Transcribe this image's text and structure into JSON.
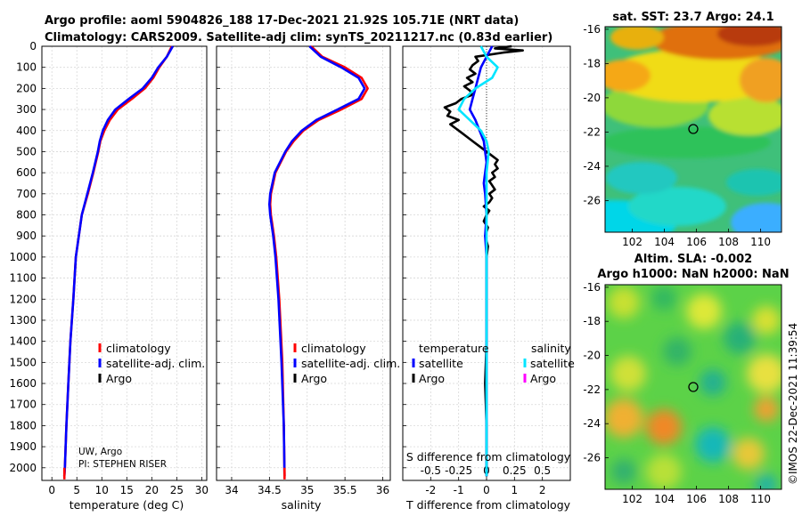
{
  "header": {
    "title_line1": "Argo profile: aoml 5904826_188 17-Dec-2021 21.92S 105.71E (NRT data)",
    "title_line2": "Climatology: CARS2009. Satellite-adj clim: synTS_20211217.nc (0.83d earlier)"
  },
  "credits": {
    "institution": "UW, Argo",
    "pi": "PI: STEPHEN RISER",
    "watermark": "©IMOS 22-Dec-2021 11:39:54"
  },
  "colors": {
    "climatology": "#ff0000",
    "satellite": "#0000ff",
    "argo": "#000000",
    "sat_salinity": "#00e5ff",
    "argo_salinity": "#ff00ff"
  },
  "chart_data": [
    {
      "id": "temperature",
      "type": "line",
      "xlabel": "temperature (deg C)",
      "xlim": [
        -2,
        31
      ],
      "xticks": [
        0,
        5,
        10,
        15,
        20,
        25,
        30
      ],
      "ylim": [
        2060,
        0
      ],
      "yticks": [
        0,
        100,
        200,
        300,
        400,
        500,
        600,
        700,
        800,
        900,
        1000,
        1100,
        1200,
        1300,
        1400,
        1500,
        1600,
        1700,
        1800,
        1900,
        2000
      ],
      "legend": [
        "climatology",
        "satellite-adj. clim.",
        "Argo"
      ],
      "series": [
        {
          "name": "climatology",
          "depth": [
            0,
            50,
            100,
            150,
            200,
            250,
            300,
            350,
            400,
            450,
            500,
            600,
            700,
            800,
            1000,
            1200,
            1400,
            1600,
            1800,
            2000,
            2040
          ],
          "values": [
            24.0,
            23.0,
            21.5,
            20.3,
            18.6,
            16.0,
            13.2,
            11.6,
            10.5,
            9.7,
            9.3,
            8.3,
            7.2,
            6.0,
            4.8,
            4.3,
            3.7,
            3.3,
            2.9,
            2.6,
            2.5
          ]
        },
        {
          "name": "satellite-adj. clim.",
          "depth": [
            0,
            50,
            100,
            150,
            200,
            250,
            300,
            350,
            400,
            450,
            500,
            600,
            700,
            800,
            1000,
            1200,
            1400,
            1600,
            1800,
            2000,
            2040
          ],
          "values": [
            24.2,
            23.0,
            21.3,
            20.0,
            18.2,
            15.4,
            12.7,
            11.2,
            10.2,
            9.6,
            9.2,
            8.2,
            7.1,
            6.0,
            4.8,
            4.3,
            3.7,
            3.3,
            2.9,
            2.6,
            2.5
          ]
        },
        {
          "name": "Argo",
          "depth": [],
          "values": []
        }
      ]
    },
    {
      "id": "salinity",
      "type": "line",
      "xlabel": "salinity",
      "xlim": [
        33.8,
        36.1
      ],
      "xticks": [
        34,
        34.5,
        35,
        35.5,
        36
      ],
      "ylim": [
        2060,
        0
      ],
      "legend": [
        "climatology",
        "satellite-adj. clim.",
        "Argo"
      ],
      "series": [
        {
          "name": "climatology",
          "depth": [
            0,
            50,
            100,
            150,
            200,
            250,
            300,
            350,
            400,
            450,
            500,
            600,
            700,
            750,
            800,
            900,
            1000,
            1200,
            1500,
            1800,
            2040
          ],
          "values": [
            35.05,
            35.2,
            35.5,
            35.72,
            35.8,
            35.72,
            35.45,
            35.15,
            34.95,
            34.82,
            34.72,
            34.58,
            34.52,
            34.51,
            34.52,
            34.56,
            34.59,
            34.63,
            34.67,
            34.69,
            34.7
          ]
        },
        {
          "name": "satellite-adj. clim.",
          "depth": [
            0,
            50,
            100,
            150,
            200,
            250,
            300,
            350,
            400,
            450,
            500,
            600,
            700,
            750,
            800,
            900,
            1000,
            1200,
            1500,
            1800,
            2040
          ],
          "values": [
            35.03,
            35.18,
            35.45,
            35.68,
            35.76,
            35.68,
            35.4,
            35.12,
            34.93,
            34.8,
            34.71,
            34.57,
            34.51,
            34.5,
            34.51,
            34.55,
            34.58,
            34.62,
            34.66,
            34.69,
            34.7
          ]
        },
        {
          "name": "Argo",
          "depth": [],
          "values": []
        }
      ]
    },
    {
      "id": "difference",
      "type": "line",
      "xlabel": "T difference from climatology",
      "xlabel_top": "S difference from climatology",
      "xlim": [
        -3,
        3
      ],
      "xticks": [
        -2,
        -1,
        0,
        1,
        2
      ],
      "xticks_s": [
        "-0.5",
        "-0.25",
        "0",
        "0.25",
        "0.5"
      ],
      "ylim": [
        2060,
        0
      ],
      "legend_temperature_title": "temperature",
      "legend_salinity_title": "salinity",
      "legend": [
        "satellite",
        "Argo"
      ],
      "series": [
        {
          "name": "T satellite",
          "depth": [
            0,
            50,
            100,
            150,
            200,
            250,
            300,
            350,
            400,
            450,
            500,
            550,
            600,
            650,
            700,
            800,
            900,
            1000,
            1200,
            1500,
            2040
          ],
          "values": [
            0.2,
            0.0,
            -0.2,
            -0.3,
            -0.4,
            -0.5,
            -0.6,
            -0.4,
            -0.25,
            -0.1,
            -0.05,
            0.0,
            -0.05,
            -0.1,
            -0.05,
            0.0,
            -0.05,
            0.0,
            0.0,
            0.0,
            0.0
          ]
        },
        {
          "name": "T Argo",
          "depth": [
            0,
            10,
            20,
            30,
            50,
            70,
            90,
            110,
            130,
            150,
            170,
            190,
            210,
            230,
            250,
            270,
            290,
            310,
            330,
            350,
            370,
            390,
            410,
            430,
            450,
            480,
            500,
            520,
            540,
            560,
            580,
            600,
            620,
            640,
            660,
            680,
            700,
            720,
            740,
            760,
            780,
            800,
            830,
            860,
            900,
            950,
            1000,
            1100,
            1200,
            1400,
            1600,
            1800,
            2040
          ],
          "values": [
            0.9,
            0.3,
            1.3,
            0.6,
            -0.4,
            -0.3,
            -0.5,
            -0.6,
            -0.4,
            -0.7,
            -0.5,
            -0.8,
            -0.6,
            -0.5,
            -0.9,
            -1.1,
            -1.5,
            -1.3,
            -1.4,
            -1.0,
            -1.3,
            -1.1,
            -0.9,
            -0.7,
            -0.5,
            -0.2,
            0.0,
            0.2,
            0.4,
            0.3,
            0.4,
            0.2,
            0.3,
            0.1,
            0.2,
            0.3,
            0.1,
            0.2,
            0.1,
            -0.1,
            0.1,
            0.0,
            -0.1,
            0.05,
            -0.05,
            0.05,
            0.0,
            0.0,
            0.0,
            0.0,
            -0.05,
            0.0,
            0.0
          ]
        },
        {
          "name": "S satellite",
          "depth": [
            0,
            50,
            100,
            150,
            200,
            250,
            300,
            350,
            400,
            450,
            500,
            600,
            700,
            800,
            1000,
            1200,
            1500,
            2040
          ],
          "values": [
            -0.05,
            0.0,
            0.1,
            0.05,
            -0.1,
            -0.2,
            -0.25,
            -0.15,
            -0.05,
            0.0,
            0.02,
            0.0,
            0.0,
            0.0,
            0.0,
            0.0,
            0.0,
            0.0
          ]
        }
      ]
    }
  ],
  "maps": [
    {
      "id": "sst",
      "title": "sat. SST: 23.7 Argo: 24.1",
      "xticks": [
        "102",
        "104",
        "106",
        "108",
        "110"
      ],
      "yticks": [
        "-16",
        "-18",
        "-20",
        "-22",
        "-24",
        "-26"
      ]
    },
    {
      "id": "sla",
      "title_line1": "Altim. SLA: -0.002",
      "title_line2": "Argo h1000: NaN h2000: NaN",
      "xticks": [
        "102",
        "104",
        "106",
        "108",
        "110"
      ],
      "yticks": [
        "-16",
        "-18",
        "-20",
        "-22",
        "-24",
        "-26"
      ]
    }
  ]
}
